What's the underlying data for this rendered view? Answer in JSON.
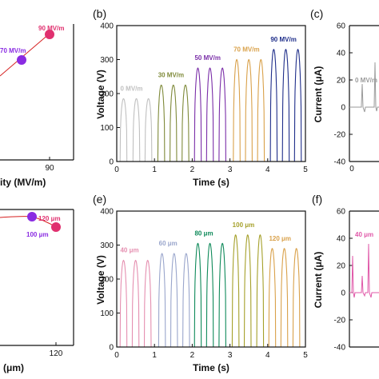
{
  "panels": [
    {
      "id": "a",
      "label": "",
      "type": "line+scatter",
      "xlabel": "ity (MV/m)",
      "x_ticks": [
        "90"
      ],
      "annotations": [
        "70 MV/m",
        "90 MV/m"
      ],
      "points": [
        {
          "x": 70,
          "label": "70 MV/m",
          "color": "#8a2be2"
        },
        {
          "x": 90,
          "label": "90 MV/m",
          "color": "#e0306f"
        }
      ],
      "line_color": "#d62020"
    },
    {
      "id": "b",
      "label": "(b)",
      "type": "line",
      "xlabel": "Time (s)",
      "ylabel": "Voltage (V)",
      "xlim": [
        0,
        5
      ],
      "ylim": [
        0,
        400
      ],
      "x_ticks": [
        0,
        1,
        2,
        3,
        4,
        5
      ],
      "y_ticks": [
        0,
        100,
        200,
        300,
        400
      ],
      "groups": [
        {
          "label": "0 MV/m",
          "color": "#c0c0c0",
          "amplitude": 185,
          "t": [
            0.18,
            0.52,
            0.84
          ]
        },
        {
          "label": "30 MV/m",
          "color": "#7f8a3a",
          "amplitude": 225,
          "t": [
            1.18,
            1.5,
            1.82
          ]
        },
        {
          "label": "50 MV/m",
          "color": "#7a2ea8",
          "amplitude": 275,
          "t": [
            2.15,
            2.47,
            2.8
          ]
        },
        {
          "label": "70 MV/m",
          "color": "#d9a14a",
          "amplitude": 300,
          "t": [
            3.18,
            3.5,
            3.82
          ]
        },
        {
          "label": "90 MV/m",
          "color": "#1f2e8a",
          "amplitude": 330,
          "t": [
            4.16,
            4.48,
            4.8
          ]
        }
      ]
    },
    {
      "id": "c",
      "label": "(c)",
      "type": "line",
      "ylabel": "Current (μA)",
      "ylim": [
        -40,
        60
      ],
      "x_ticks": [
        0
      ],
      "y_ticks": [
        -40,
        -20,
        0,
        20,
        40,
        60
      ],
      "annotations": [
        "0 MV/m"
      ],
      "color": "#9a9a9a"
    },
    {
      "id": "d",
      "label": "",
      "type": "line+scatter",
      "xlabel": "(μm)",
      "x_ticks": [
        "120"
      ],
      "annotations": [
        "100 μm",
        "120 μm"
      ],
      "points": [
        {
          "x": 100,
          "label": "100 μm",
          "color": "#8a2be2"
        },
        {
          "x": 120,
          "label": "120 μm",
          "color": "#e0306f"
        }
      ],
      "line_color": "#d62020"
    },
    {
      "id": "e",
      "label": "(e)",
      "type": "line",
      "xlabel": "Time (s)",
      "ylabel": "Voltage (V)",
      "xlim": [
        0,
        5
      ],
      "ylim": [
        0,
        400
      ],
      "x_ticks": [
        0,
        1,
        2,
        3,
        4,
        5
      ],
      "y_ticks": [
        0,
        100,
        200,
        300,
        400
      ],
      "groups": [
        {
          "label": "40 μm",
          "color": "#e58fb0",
          "amplitude": 255,
          "t": [
            0.18,
            0.5,
            0.82
          ]
        },
        {
          "label": "60 μm",
          "color": "#9aa6cc",
          "amplitude": 275,
          "t": [
            1.2,
            1.52,
            1.84
          ]
        },
        {
          "label": "80 μm",
          "color": "#0f8a5a",
          "amplitude": 305,
          "t": [
            2.15,
            2.47,
            2.8
          ]
        },
        {
          "label": "100 μm",
          "color": "#a5a02a",
          "amplitude": 330,
          "t": [
            3.15,
            3.47,
            3.8
          ]
        },
        {
          "label": "120 μm",
          "color": "#d9a14a",
          "amplitude": 290,
          "t": [
            4.12,
            4.44,
            4.76
          ]
        }
      ]
    },
    {
      "id": "f",
      "label": "(f)",
      "type": "line",
      "ylabel": "Current (μA)",
      "ylim": [
        -40,
        60
      ],
      "y_ticks": [
        -40,
        -20,
        0,
        20,
        40,
        60
      ],
      "annotations": [
        "40 μm"
      ],
      "color": "#e058a8"
    }
  ],
  "chart_data": [
    {
      "type": "line",
      "panel": "b",
      "xlabel": "Time (s)",
      "ylabel": "Voltage (V)",
      "xlim": [
        0,
        5
      ],
      "ylim": [
        0,
        400
      ],
      "series": [
        {
          "name": "0 MV/m",
          "peaks_at_s": [
            0.18,
            0.52,
            0.84
          ],
          "peak_voltage": 185
        },
        {
          "name": "30 MV/m",
          "peaks_at_s": [
            1.18,
            1.5,
            1.82
          ],
          "peak_voltage": 225
        },
        {
          "name": "50 MV/m",
          "peaks_at_s": [
            2.15,
            2.47,
            2.8
          ],
          "peak_voltage": 275
        },
        {
          "name": "70 MV/m",
          "peaks_at_s": [
            3.18,
            3.5,
            3.82
          ],
          "peak_voltage": 300
        },
        {
          "name": "90 MV/m",
          "peaks_at_s": [
            4.16,
            4.48,
            4.8
          ],
          "peak_voltage": 330
        }
      ]
    },
    {
      "type": "line",
      "panel": "e",
      "xlabel": "Time (s)",
      "ylabel": "Voltage (V)",
      "xlim": [
        0,
        5
      ],
      "ylim": [
        0,
        400
      ],
      "series": [
        {
          "name": "40 μm",
          "peaks_at_s": [
            0.18,
            0.5,
            0.82
          ],
          "peak_voltage": 255
        },
        {
          "name": "60 μm",
          "peaks_at_s": [
            1.2,
            1.52,
            1.84
          ],
          "peak_voltage": 275
        },
        {
          "name": "80 μm",
          "peaks_at_s": [
            2.15,
            2.47,
            2.8
          ],
          "peak_voltage": 305
        },
        {
          "name": "100 μm",
          "peaks_at_s": [
            3.15,
            3.47,
            3.8
          ],
          "peak_voltage": 330
        },
        {
          "name": "120 μm",
          "peaks_at_s": [
            4.12,
            4.44,
            4.76
          ],
          "peak_voltage": 290
        }
      ]
    }
  ]
}
